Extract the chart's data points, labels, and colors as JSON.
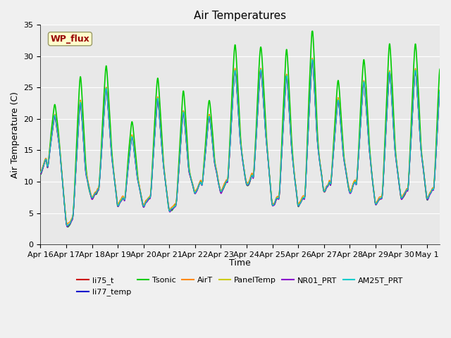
{
  "title": "Air Temperatures",
  "ylabel": "Air Temperature (C)",
  "xlabel": "Time",
  "ylim": [
    0,
    35
  ],
  "yticks": [
    0,
    5,
    10,
    15,
    20,
    25,
    30,
    35
  ],
  "x_labels": [
    "Apr 16",
    "Apr 17",
    "Apr 18",
    "Apr 19",
    "Apr 20",
    "Apr 21",
    "Apr 22",
    "Apr 23",
    "Apr 24",
    "Apr 25",
    "Apr 26",
    "Apr 27",
    "Apr 28",
    "Apr 29",
    "Apr 30",
    "May 1"
  ],
  "series_names": [
    "li75_t",
    "li77_temp",
    "Tsonic",
    "AirT",
    "PanelTemp",
    "NR01_PRT",
    "AM25T_PRT"
  ],
  "series_colors": [
    "#cc0000",
    "#0000cc",
    "#00cc00",
    "#ff8800",
    "#cccc00",
    "#8800cc",
    "#00cccc"
  ],
  "series_lw": [
    0.9,
    0.9,
    1.2,
    0.9,
    0.9,
    0.9,
    0.9
  ],
  "annotation_text": "WP_flux",
  "annotation_color": "#990000",
  "annotation_bg": "#ffffcc",
  "annotation_edgecolor": "#999966",
  "bg_color": "#f0f0f0",
  "plot_bg": "#e8e8e8",
  "grid_color": "#ffffff",
  "title_fontsize": 11,
  "label_fontsize": 9,
  "tick_fontsize": 8,
  "legend_fontsize": 8
}
